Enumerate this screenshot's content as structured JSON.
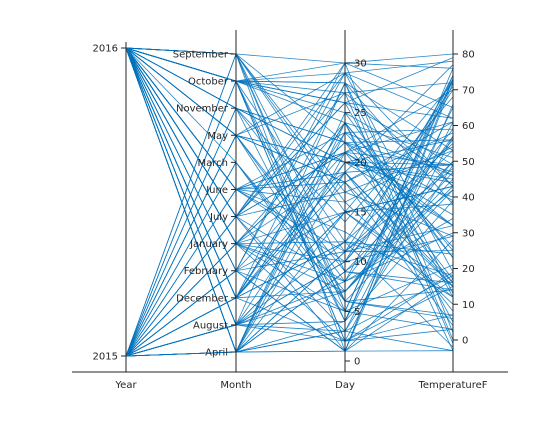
{
  "chart_data": {
    "type": "parallel-coordinates",
    "title": "",
    "line_color": "#0072BD",
    "axis_color": "#262626",
    "axes": [
      {
        "name": "Year",
        "kind": "categorical",
        "categories": [
          "2015",
          "2016"
        ]
      },
      {
        "name": "Month",
        "kind": "categorical",
        "categories": [
          "April",
          "August",
          "December",
          "February",
          "January",
          "July",
          "June",
          "March",
          "May",
          "November",
          "October",
          "September"
        ]
      },
      {
        "name": "Day",
        "kind": "numeric",
        "range": [
          0,
          31
        ],
        "ticks": [
          0,
          5,
          10,
          15,
          20,
          25,
          30
        ]
      },
      {
        "name": "TemperatureF",
        "kind": "numeric",
        "range": [
          -6,
          85
        ],
        "ticks": [
          0,
          10,
          20,
          30,
          40,
          50,
          60,
          70,
          80
        ]
      }
    ],
    "series": {
      "records": 120,
      "samples": [
        [
          "2015",
          "April",
          1,
          28
        ],
        [
          "2015",
          "August",
          15,
          72
        ],
        [
          "2016",
          "September",
          30,
          65
        ],
        [
          "2016",
          "January",
          12,
          18
        ],
        [
          "2015",
          "December",
          24,
          25
        ],
        [
          "2016",
          "March",
          6,
          42
        ],
        [
          "2015",
          "June",
          21,
          70
        ],
        [
          "2016",
          "May",
          18,
          58
        ]
      ]
    },
    "grid": false,
    "legend": "none"
  }
}
